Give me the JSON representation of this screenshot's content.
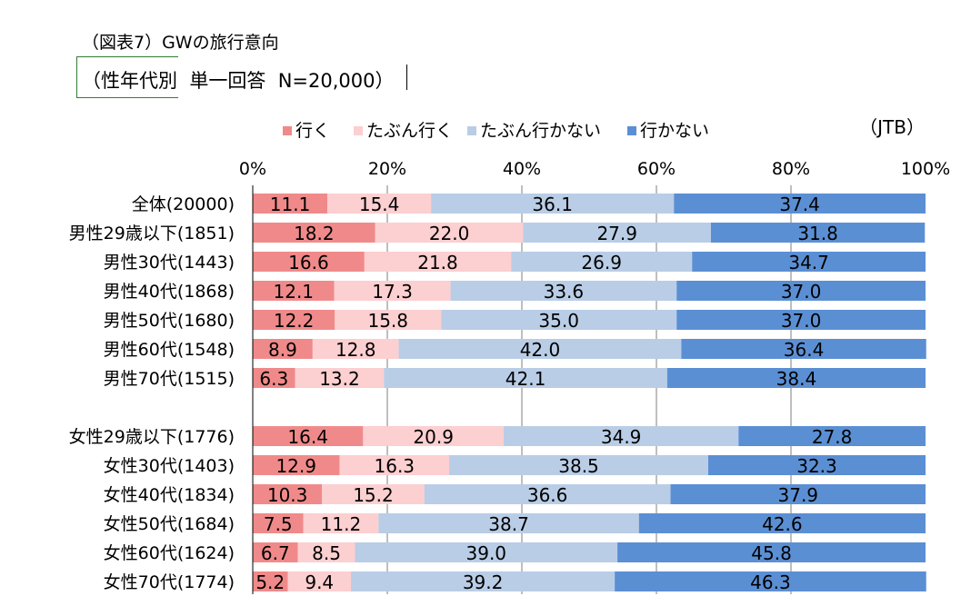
{
  "title": "（図表7）GWの旅行意向",
  "subtitle": "（性年代別  単一回答  N=20,000）",
  "source": "（JTB）",
  "chart_data": {
    "type": "bar",
    "orientation": "horizontal",
    "stacked": "percent",
    "title": "（図表7）GWの旅行意向",
    "xlim": [
      0,
      100
    ],
    "x_ticks": [
      "0%",
      "20%",
      "40%",
      "60%",
      "80%",
      "100%"
    ],
    "legend_position": "top",
    "categories": [
      "全体(20000)",
      "男性29歳以下(1851)",
      "男性30代(1443)",
      "男性40代(1868)",
      "男性50代(1680)",
      "男性60代(1548)",
      "男性70代(1515)",
      "",
      "女性29歳以下(1776)",
      "女性30代(1403)",
      "女性40代(1834)",
      "女性50代(1684)",
      "女性60代(1624)",
      "女性70代(1774)"
    ],
    "series": [
      {
        "name": "行く",
        "color": "#f08a8a",
        "values": [
          11.1,
          18.2,
          16.6,
          12.1,
          12.2,
          8.9,
          6.3,
          null,
          16.4,
          12.9,
          10.3,
          7.5,
          6.7,
          5.2
        ]
      },
      {
        "name": "たぶん行く",
        "color": "#fccfd1",
        "values": [
          15.4,
          22.0,
          21.8,
          17.3,
          15.8,
          12.8,
          13.2,
          null,
          20.9,
          16.3,
          15.2,
          11.2,
          8.5,
          9.4
        ]
      },
      {
        "name": "たぶん行かない",
        "color": "#b9cde6",
        "values": [
          36.1,
          27.9,
          26.9,
          33.6,
          35.0,
          42.0,
          42.1,
          null,
          34.9,
          38.5,
          36.6,
          38.7,
          39.0,
          39.2
        ]
      },
      {
        "name": "行かない",
        "color": "#5b8fd4",
        "values": [
          37.4,
          31.8,
          34.7,
          37.0,
          37.0,
          36.4,
          38.4,
          null,
          27.8,
          32.3,
          37.9,
          42.6,
          45.8,
          46.3
        ]
      }
    ]
  }
}
